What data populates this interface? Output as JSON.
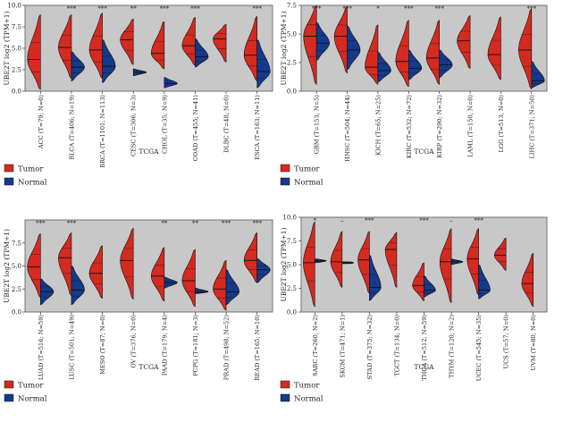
{
  "chart_data": [
    {
      "type": "violin",
      "title": "",
      "xlabel": "TCGA",
      "ylabel": "UBE2T log2 (TPM+1)",
      "ylim": [
        0,
        10
      ],
      "y_ticks": [
        "0.0",
        "2.5",
        "5.0",
        "7.5",
        "10.0"
      ],
      "grid": false,
      "legend": {
        "position": "bottom-left",
        "entries": [
          "Tumor",
          "Normal"
        ]
      },
      "categories": [
        "ACC (T=79; N=0)",
        "BLCA (T=406; N=19)",
        "BRCA (T=1101; N=113)",
        "CESC (T=306; N=3)",
        "CHOL (T=35; N=9)",
        "COAD (T=455; N=41)",
        "DLBC (T=48; N=0)",
        "ESCA (T=163; N=11)"
      ],
      "significance": [
        "",
        "***",
        "***",
        "**",
        "***",
        "***",
        "",
        "***"
      ],
      "tumor": [
        {
          "min": 0.2,
          "max": 8.9,
          "median": 3.7
        },
        {
          "min": 1.5,
          "max": 8.9,
          "median": 5.1
        },
        {
          "min": 1.5,
          "max": 9.1,
          "median": 4.8
        },
        {
          "min": 3.1,
          "max": 8.4,
          "median": 6.0
        },
        {
          "min": 2.6,
          "max": 8.1,
          "median": 4.4
        },
        {
          "min": 3.0,
          "max": 8.6,
          "median": 5.3
        },
        {
          "min": 3.4,
          "max": 7.8,
          "median": 6.1
        },
        {
          "min": 1.2,
          "max": 8.7,
          "median": 4.2
        }
      ],
      "normal": [
        null,
        {
          "min": 1.2,
          "max": 4.6,
          "median": 2.8
        },
        {
          "min": 1.0,
          "max": 6.0,
          "median": 2.9
        },
        {
          "min": 1.8,
          "max": 2.6,
          "median": 2.2
        },
        {
          "min": 0.4,
          "max": 1.6,
          "median": 0.9
        },
        {
          "min": 2.8,
          "max": 6.1,
          "median": 4.0
        },
        null,
        {
          "min": 0.4,
          "max": 6.0,
          "median": 2.3
        }
      ]
    },
    {
      "type": "violin",
      "title": "",
      "xlabel": "TCGA",
      "ylabel": "UBE2T log2 (TPM+1)",
      "ylim": [
        0,
        7.5
      ],
      "y_ticks": [
        "0.0",
        "2.5",
        "5.0",
        "7.5"
      ],
      "grid": false,
      "legend": {
        "position": "bottom-left",
        "entries": [
          "Tumor",
          "Normal"
        ]
      },
      "categories": [
        "GBM (T=153; N=5)",
        "HNSC (T=504; N=44)",
        "KICH (T=65; N=25)",
        "KIRC (T=532; N=72)",
        "KIRP (T=290; N=32)",
        "LAML (T=150; N=0)",
        "LGG (T=513; N=0)",
        "LIHC (T=371; N=50)"
      ],
      "significance": [
        "***",
        "***",
        "*",
        "***",
        "***",
        "",
        "",
        "***"
      ],
      "tumor": [
        {
          "min": 0.6,
          "max": 7.5,
          "median": 4.8
        },
        {
          "min": 1.6,
          "max": 7.4,
          "median": 4.8
        },
        {
          "min": 0.6,
          "max": 5.8,
          "median": 2.1
        },
        {
          "min": 0.4,
          "max": 6.2,
          "median": 2.6
        },
        {
          "min": 0.6,
          "max": 6.2,
          "median": 2.9
        },
        {
          "min": 2.0,
          "max": 6.6,
          "median": 4.4
        },
        {
          "min": 1.0,
          "max": 6.5,
          "median": 3.2
        },
        {
          "min": 0.2,
          "max": 7.2,
          "median": 3.6
        }
      ],
      "normal": [
        {
          "min": 2.7,
          "max": 6.0,
          "median": 4.2
        },
        {
          "min": 1.9,
          "max": 5.7,
          "median": 3.6
        },
        {
          "min": 0.8,
          "max": 3.4,
          "median": 1.8
        },
        {
          "min": 1.0,
          "max": 3.6,
          "median": 2.0
        },
        {
          "min": 1.2,
          "max": 3.6,
          "median": 2.3
        },
        null,
        null,
        {
          "min": 0.3,
          "max": 2.6,
          "median": 0.9
        }
      ]
    },
    {
      "type": "violin",
      "title": "",
      "xlabel": "TCGA",
      "ylabel": "UBE2T log2 (TPM+1)",
      "ylim": [
        0,
        10
      ],
      "y_ticks": [
        "0.0",
        "2.5",
        "5.0",
        "7.5"
      ],
      "grid": false,
      "legend": {
        "position": "bottom-left",
        "entries": [
          "Tumor",
          "Normal"
        ]
      },
      "categories": [
        "LUAD (T=516; N=59)",
        "LUSC (T=501; N=49)",
        "MESO (T=87; N=0)",
        "OV (T=376; N=0)",
        "PAAD (T=179; N=4)",
        "PCPG (T=181; N=3)",
        "PRAD (T=498; N=52)",
        "READ (T=165; N=10)"
      ],
      "significance": [
        "***",
        "***",
        "",
        "",
        "**",
        "**",
        "***",
        "***"
      ],
      "tumor": [
        {
          "min": 1.6,
          "max": 8.5,
          "median": 4.9
        },
        {
          "min": 1.8,
          "max": 8.6,
          "median": 5.9
        },
        {
          "min": 1.5,
          "max": 7.2,
          "median": 4.2
        },
        {
          "min": 1.4,
          "max": 9.1,
          "median": 5.6
        },
        {
          "min": 1.2,
          "max": 7.0,
          "median": 3.9
        },
        {
          "min": 0.6,
          "max": 6.8,
          "median": 3.4
        },
        {
          "min": 0.2,
          "max": 5.6,
          "median": 2.5
        },
        {
          "min": 3.2,
          "max": 8.6,
          "median": 5.6
        }
      ],
      "normal": [
        {
          "min": 0.8,
          "max": 3.6,
          "median": 2.2
        },
        {
          "min": 0.8,
          "max": 5.0,
          "median": 2.4
        },
        null,
        null,
        {
          "min": 2.6,
          "max": 3.8,
          "median": 3.2
        },
        {
          "min": 2.0,
          "max": 2.6,
          "median": 2.2
        },
        {
          "min": 0.8,
          "max": 4.6,
          "median": 2.2
        },
        {
          "min": 3.2,
          "max": 5.8,
          "median": 4.6
        }
      ]
    },
    {
      "type": "violin",
      "title": "",
      "xlabel": "TCGA",
      "ylabel": "UBE2T log2 (TPM+1)",
      "ylim": [
        0,
        10
      ],
      "y_ticks": [
        "0.0",
        "2.5",
        "5.0",
        "7.5",
        "10.0"
      ],
      "grid": false,
      "legend": {
        "position": "bottom-left",
        "entries": [
          "Tumor",
          "Normal"
        ]
      },
      "categories": [
        "SARC (T=260; N=2)",
        "SKCM (T=471; N=1)",
        "STAD (T=375; N=32)",
        "TGCT (T=134; N=0)",
        "THCA (T=512; N=59)",
        "THYM (T=120; N=2)",
        "UCEC (T=545; N=35)",
        "UCS (T=57; N=0)",
        "UVM (T=80; N=0)"
      ],
      "significance": [
        "*",
        "–",
        "***",
        "",
        "***",
        "–",
        "***",
        "",
        ""
      ],
      "tumor": [
        {
          "min": 0.6,
          "max": 9.5,
          "median": 5.2
        },
        {
          "min": 2.6,
          "max": 8.5,
          "median": 5.3
        },
        {
          "min": 2.0,
          "max": 8.5,
          "median": 5.5
        },
        {
          "min": 2.6,
          "max": 8.4,
          "median": 6.6
        },
        {
          "min": 1.2,
          "max": 5.2,
          "median": 2.8
        },
        {
          "min": 1.0,
          "max": 8.8,
          "median": 5.3
        },
        {
          "min": 1.8,
          "max": 8.8,
          "median": 5.6
        },
        {
          "min": 4.4,
          "max": 7.8,
          "median": 6.0
        },
        {
          "min": 0.6,
          "max": 6.2,
          "median": 3.0
        }
      ],
      "normal": [
        {
          "min": 5.2,
          "max": 5.6,
          "median": 5.4
        },
        {
          "min": 5.1,
          "max": 5.3,
          "median": 5.2
        },
        {
          "min": 1.2,
          "max": 6.0,
          "median": 2.6
        },
        null,
        {
          "min": 1.6,
          "max": 3.8,
          "median": 2.3
        },
        {
          "min": 5.0,
          "max": 5.6,
          "median": 5.3
        },
        {
          "min": 1.4,
          "max": 5.0,
          "median": 2.3
        },
        null,
        null
      ]
    }
  ],
  "colors": {
    "tumor": "#d42a20",
    "normal": "#133a8c",
    "panel_bg": "#c8c8c8"
  }
}
